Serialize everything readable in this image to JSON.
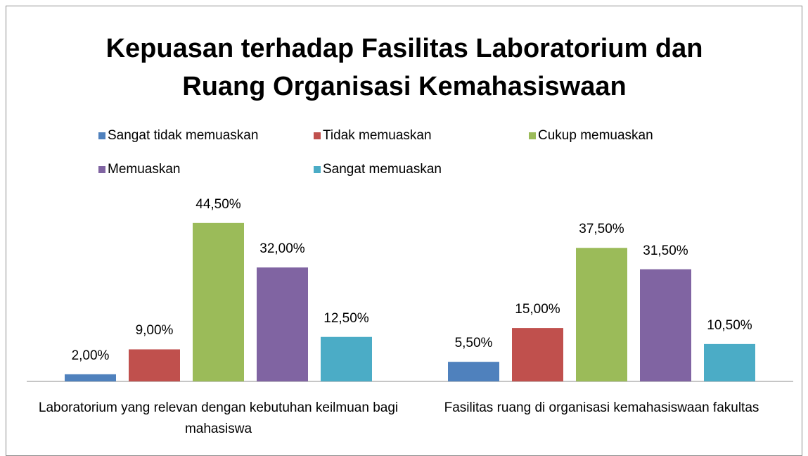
{
  "chart_data": {
    "type": "bar",
    "title": "Kepuasan terhadap Fasilitas Laboratorium dan Ruang Organisasi Kemahasiswaan",
    "categories": [
      "Laboratorium yang relevan dengan kebutuhan keilmuan bagi mahasiswa",
      "Fasilitas ruang di organisasi kemahasiswaan fakultas"
    ],
    "series": [
      {
        "name": "Sangat tidak memuaskan",
        "color": "#4f81bd",
        "values": [
          2,
          5.5
        ],
        "value_labels": [
          "2,00%",
          "5,50%"
        ]
      },
      {
        "name": "Tidak memuaskan",
        "color": "#c0504d",
        "values": [
          9,
          15
        ],
        "value_labels": [
          "9,00%",
          "15,00%"
        ]
      },
      {
        "name": "Cukup memuaskan",
        "color": "#9bbb59",
        "values": [
          44.5,
          37.5
        ],
        "value_labels": [
          "44,50%",
          "37,50%"
        ]
      },
      {
        "name": "Memuaskan",
        "color": "#8064a2",
        "values": [
          32,
          31.5
        ],
        "value_labels": [
          "32,00%",
          "31,50%"
        ]
      },
      {
        "name": "Sangat memuaskan",
        "color": "#4bacc6",
        "values": [
          12.5,
          10.5
        ],
        "value_labels": [
          "12,50%",
          "10,50%"
        ]
      }
    ],
    "legend": "top"
  }
}
